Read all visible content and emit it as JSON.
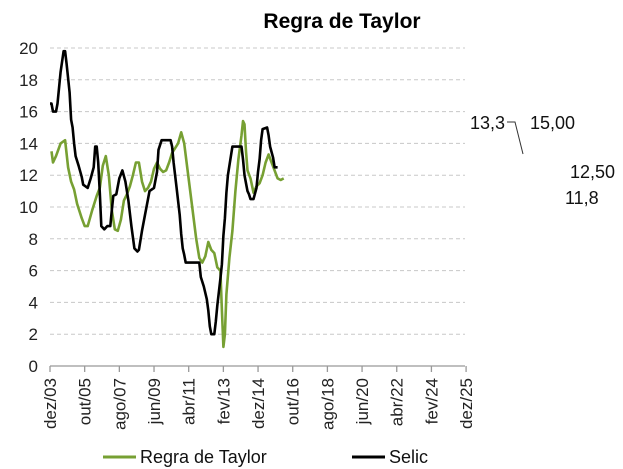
{
  "chart_data": {
    "type": "line",
    "title": "Regra de Taylor",
    "xlabel": "",
    "ylabel": "",
    "ylim": [
      0,
      20
    ],
    "yticks": [
      0,
      2,
      4,
      6,
      8,
      10,
      12,
      14,
      16,
      18,
      20
    ],
    "grid": "horizontal dashed",
    "legend_position": "bottom",
    "x_tick_labels": [
      "dez/03",
      "out/05",
      "ago/07",
      "jun/09",
      "abr/11",
      "fev/13",
      "dez/14",
      "out/16",
      "ago/18",
      "jun/20",
      "abr/22",
      "fev/24",
      "dez/25"
    ],
    "x_note": "points are [months since dez/03, value]",
    "series": [
      {
        "name": "Regra de Taylor",
        "color": "#77a033",
        "points": [
          [
            1,
            13.5
          ],
          [
            2,
            12.8
          ],
          [
            4,
            13.2
          ],
          [
            7,
            14.0
          ],
          [
            10,
            14.2
          ],
          [
            12,
            12.5
          ],
          [
            14,
            11.6
          ],
          [
            16,
            11.1
          ],
          [
            18,
            10.2
          ],
          [
            21,
            9.3
          ],
          [
            23,
            8.8
          ],
          [
            25,
            8.8
          ],
          [
            28,
            9.8
          ],
          [
            31,
            10.7
          ],
          [
            33,
            11.2
          ],
          [
            35,
            12.6
          ],
          [
            37,
            13.2
          ],
          [
            39,
            12.0
          ],
          [
            41,
            9.8
          ],
          [
            43,
            8.6
          ],
          [
            45,
            8.5
          ],
          [
            47,
            9.2
          ],
          [
            49,
            10.4
          ],
          [
            51,
            10.8
          ],
          [
            53,
            11.3
          ],
          [
            55,
            12.0
          ],
          [
            57,
            12.8
          ],
          [
            59,
            12.8
          ],
          [
            61,
            11.6
          ],
          [
            63,
            11.0
          ],
          [
            65,
            11.2
          ],
          [
            67,
            11.6
          ],
          [
            69,
            12.4
          ],
          [
            71,
            12.8
          ],
          [
            73,
            12.4
          ],
          [
            75,
            12.2
          ],
          [
            77,
            12.3
          ],
          [
            79,
            12.8
          ],
          [
            81,
            13.4
          ],
          [
            83,
            13.7
          ],
          [
            85,
            14.0
          ],
          [
            87,
            14.7
          ],
          [
            89,
            14.0
          ],
          [
            91,
            12.5
          ],
          [
            93,
            11.0
          ],
          [
            95,
            9.5
          ],
          [
            97,
            8.0
          ],
          [
            99,
            6.8
          ],
          [
            101,
            6.5
          ],
          [
            103,
            6.9
          ],
          [
            105,
            7.8
          ],
          [
            107,
            7.3
          ],
          [
            109,
            7.1
          ],
          [
            111,
            6.2
          ],
          [
            113,
            6.0
          ],
          [
            114,
            3.5
          ],
          [
            115,
            1.2
          ],
          [
            116,
            2.0
          ],
          [
            117,
            4.5
          ],
          [
            119,
            6.8
          ],
          [
            121,
            8.5
          ],
          [
            123,
            11.0
          ],
          [
            125,
            13.0
          ],
          [
            127,
            14.5
          ],
          [
            128,
            15.4
          ],
          [
            129,
            15.2
          ],
          [
            130,
            13.5
          ],
          [
            131,
            12.3
          ],
          [
            133,
            11.8
          ],
          [
            135,
            10.9
          ],
          [
            137,
            11.3
          ],
          [
            139,
            11.5
          ],
          [
            141,
            12.0
          ],
          [
            143,
            12.8
          ],
          [
            145,
            13.3
          ],
          [
            147,
            12.8
          ],
          [
            149,
            12.3
          ],
          [
            151,
            11.8
          ],
          [
            153,
            11.7
          ],
          [
            155,
            11.8
          ]
        ]
      },
      {
        "name": "Selic",
        "color": "#000000",
        "points": [
          [
            0,
            16.5
          ],
          [
            1,
            16.5
          ],
          [
            2,
            16.0
          ],
          [
            4,
            16.0
          ],
          [
            5,
            16.5
          ],
          [
            7,
            18.5
          ],
          [
            9,
            19.8
          ],
          [
            10,
            19.8
          ],
          [
            11,
            19.0
          ],
          [
            13,
            17.2
          ],
          [
            14,
            15.5
          ],
          [
            15,
            15.0
          ],
          [
            16,
            14.0
          ],
          [
            17,
            13.2
          ],
          [
            19,
            12.6
          ],
          [
            21,
            11.9
          ],
          [
            22,
            11.4
          ],
          [
            25,
            11.2
          ],
          [
            27,
            11.8
          ],
          [
            29,
            12.5
          ],
          [
            30,
            13.8
          ],
          [
            31,
            13.8
          ],
          [
            32,
            12.8
          ],
          [
            33,
            10.9
          ],
          [
            34,
            8.8
          ],
          [
            36,
            8.6
          ],
          [
            37,
            8.7
          ],
          [
            38,
            8.8
          ],
          [
            40,
            8.8
          ],
          [
            41,
            9.8
          ],
          [
            42,
            10.7
          ],
          [
            44,
            10.8
          ],
          [
            46,
            11.8
          ],
          [
            48,
            12.3
          ],
          [
            50,
            11.6
          ],
          [
            52,
            10.4
          ],
          [
            54,
            8.8
          ],
          [
            56,
            7.4
          ],
          [
            58,
            7.2
          ],
          [
            59,
            7.3
          ],
          [
            61,
            8.5
          ],
          [
            63,
            9.5
          ],
          [
            65,
            10.5
          ],
          [
            66,
            11.0
          ],
          [
            69,
            11.2
          ],
          [
            71,
            12.2
          ],
          [
            72,
            13.6
          ],
          [
            74,
            14.2
          ],
          [
            80,
            14.2
          ],
          [
            81,
            13.8
          ],
          [
            82,
            12.8
          ],
          [
            83,
            12.0
          ],
          [
            84,
            11.2
          ],
          [
            86,
            9.5
          ],
          [
            87,
            8.3
          ],
          [
            88,
            7.4
          ],
          [
            89,
            7.0
          ],
          [
            90,
            6.5
          ],
          [
            99,
            6.5
          ],
          [
            100,
            5.6
          ],
          [
            102,
            5.0
          ],
          [
            104,
            4.2
          ],
          [
            105,
            3.5
          ],
          [
            106,
            2.5
          ],
          [
            107,
            2.0
          ],
          [
            109,
            2.0
          ],
          [
            110,
            2.8
          ],
          [
            111,
            3.8
          ],
          [
            113,
            5.5
          ],
          [
            114,
            6.4
          ],
          [
            115,
            8.2
          ],
          [
            116,
            9.3
          ],
          [
            117,
            10.9
          ],
          [
            118,
            12.0
          ],
          [
            120,
            13.2
          ],
          [
            121,
            13.8
          ],
          [
            127,
            13.8
          ],
          [
            128,
            13.0
          ],
          [
            129,
            12.0
          ],
          [
            130,
            11.5
          ],
          [
            131,
            11.0
          ],
          [
            132,
            10.8
          ],
          [
            133,
            10.5
          ],
          [
            135,
            10.5
          ],
          [
            137,
            11.2
          ],
          [
            138,
            12.2
          ],
          [
            139,
            13.0
          ],
          [
            140,
            14.2
          ],
          [
            141,
            14.9
          ],
          [
            144,
            15.0
          ],
          [
            145,
            14.5
          ],
          [
            146,
            13.8
          ],
          [
            148,
            13.1
          ],
          [
            149,
            12.5
          ],
          [
            151,
            12.5
          ]
        ]
      }
    ],
    "annotations": [
      {
        "text": "13,3",
        "series": "Regra de Taylor"
      },
      {
        "text": "15,00",
        "series": "Selic"
      },
      {
        "text": "12,50",
        "series": "Selic"
      },
      {
        "text": "11,8",
        "series": "Regra de Taylor"
      }
    ]
  },
  "legend": {
    "items": [
      {
        "label": "Regra de Taylor",
        "color": "#77a033"
      },
      {
        "label": "Selic",
        "color": "#000000"
      }
    ]
  }
}
